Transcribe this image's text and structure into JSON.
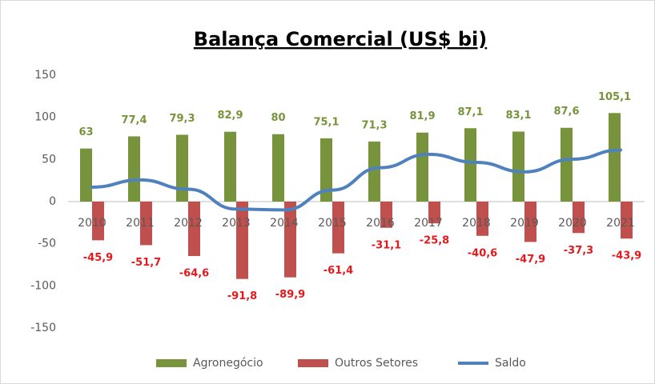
{
  "chart_data": {
    "type": "bar",
    "title": "Balança Comercial (US$ bi)",
    "categories": [
      "2010",
      "2011",
      "2012",
      "2013",
      "2014",
      "2015",
      "2016",
      "2017",
      "2018",
      "2019",
      "2020",
      "2021"
    ],
    "series": [
      {
        "name": "Agronegócio",
        "color": "#77933c",
        "type": "bar",
        "values": [
          63,
          77.4,
          79.3,
          82.9,
          80,
          75.1,
          71.3,
          81.9,
          87.1,
          83.1,
          87.6,
          105.1
        ],
        "value_labels": [
          "63",
          "77,4",
          "79,3",
          "82,9",
          "80",
          "75,1",
          "71,3",
          "81,9",
          "87,1",
          "83,1",
          "87,6",
          "105,1"
        ]
      },
      {
        "name": "Outros Setores",
        "color": "#c0504d",
        "type": "bar",
        "values": [
          -45.9,
          -51.7,
          -64.6,
          -91.8,
          -89.9,
          -61.4,
          -31.1,
          -25.8,
          -40.6,
          -47.9,
          -37.3,
          -43.9
        ],
        "value_labels": [
          "-45,9",
          "-51,7",
          "-64,6",
          "-91,8",
          "-89,9",
          "-61,4",
          "-31,1",
          "-25,8",
          "-40,6",
          "-47,9",
          "-37,3",
          "-43,9"
        ]
      },
      {
        "name": "Saldo",
        "color": "#4f81bd",
        "type": "line",
        "values": [
          17.1,
          25.7,
          14.7,
          -8.9,
          -9.9,
          13.7,
          40.2,
          56.1,
          46.5,
          35.2,
          50.3,
          61.2
        ]
      }
    ],
    "ylim": [
      -150,
      150
    ],
    "yticks": [
      -150,
      -100,
      -50,
      0,
      50,
      100,
      150
    ],
    "grid": false,
    "legend": "bottom"
  }
}
